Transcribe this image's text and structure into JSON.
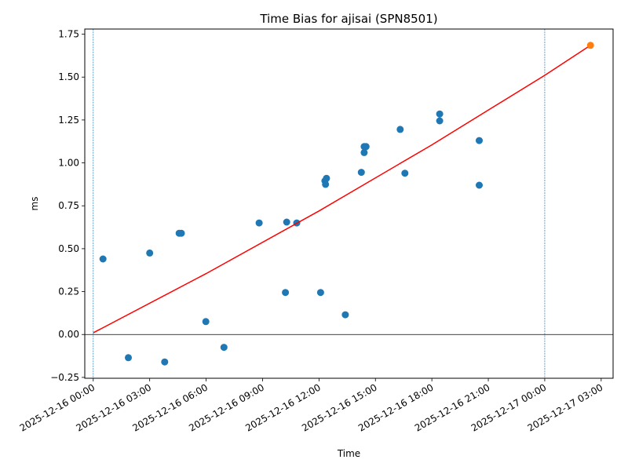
{
  "chart_data": {
    "type": "scatter",
    "title": "Time Bias for ajisai (SPN8501)",
    "xlabel": "Time",
    "ylabel": "ms",
    "xlim": [
      "2025-12-15 23:33",
      "2025-12-17 03:38"
    ],
    "ylim": [
      -0.255,
      1.78
    ],
    "x_ticks": [
      "2025-12-16 00:00",
      "2025-12-16 03:00",
      "2025-12-16 06:00",
      "2025-12-16 09:00",
      "2025-12-16 12:00",
      "2025-12-16 15:00",
      "2025-12-16 18:00",
      "2025-12-16 21:00",
      "2025-12-17 00:00",
      "2025-12-17 03:00"
    ],
    "y_ticks": [
      "−0.25",
      "0.00",
      "0.25",
      "0.50",
      "0.75",
      "1.00",
      "1.25",
      "1.50",
      "1.75"
    ],
    "y_tick_values": [
      -0.25,
      0,
      0.25,
      0.5,
      0.75,
      1.0,
      1.25,
      1.5,
      1.75
    ],
    "vertical_lines": [
      "2025-12-16 00:00",
      "2025-12-17 00:00"
    ],
    "horizontal_lines": [
      0
    ],
    "grid": false,
    "series": [
      {
        "type": "scatter",
        "color": "#1f77b4",
        "points": [
          {
            "x": "2025-12-16 00:31",
            "y": 0.44
          },
          {
            "x": "2025-12-16 01:52",
            "y": -0.135
          },
          {
            "x": "2025-12-16 03:00",
            "y": 0.475
          },
          {
            "x": "2025-12-16 03:48",
            "y": -0.16
          },
          {
            "x": "2025-12-16 04:34",
            "y": 0.59
          },
          {
            "x": "2025-12-16 04:41",
            "y": 0.59
          },
          {
            "x": "2025-12-16 05:59",
            "y": 0.075
          },
          {
            "x": "2025-12-16 06:57",
            "y": -0.075
          },
          {
            "x": "2025-12-16 08:49",
            "y": 0.65
          },
          {
            "x": "2025-12-16 10:13",
            "y": 0.245
          },
          {
            "x": "2025-12-16 10:17",
            "y": 0.655
          },
          {
            "x": "2025-12-16 10:49",
            "y": 0.65
          },
          {
            "x": "2025-12-16 12:05",
            "y": 0.245
          },
          {
            "x": "2025-12-16 12:19",
            "y": 0.895
          },
          {
            "x": "2025-12-16 12:21",
            "y": 0.875
          },
          {
            "x": "2025-12-16 12:24",
            "y": 0.91
          },
          {
            "x": "2025-12-16 13:24",
            "y": 0.115
          },
          {
            "x": "2025-12-16 14:15",
            "y": 0.945
          },
          {
            "x": "2025-12-16 14:24",
            "y": 1.06
          },
          {
            "x": "2025-12-16 14:24",
            "y": 1.095
          },
          {
            "x": "2025-12-16 14:30",
            "y": 1.095
          },
          {
            "x": "2025-12-16 16:19",
            "y": 1.195
          },
          {
            "x": "2025-12-16 16:34",
            "y": 0.94
          },
          {
            "x": "2025-12-16 18:25",
            "y": 1.285
          },
          {
            "x": "2025-12-16 18:25",
            "y": 1.245
          },
          {
            "x": "2025-12-16 20:31",
            "y": 1.13
          },
          {
            "x": "2025-12-16 20:31",
            "y": 0.87
          }
        ]
      },
      {
        "type": "line",
        "color": "#ff0000",
        "points": [
          {
            "x": "2025-12-16 00:00",
            "y": 0.01
          },
          {
            "x": "2025-12-16 06:00",
            "y": 0.355
          },
          {
            "x": "2025-12-16 12:00",
            "y": 0.72
          },
          {
            "x": "2025-12-16 18:00",
            "y": 1.105
          },
          {
            "x": "2025-12-17 00:00",
            "y": 1.51
          },
          {
            "x": "2025-12-17 02:26",
            "y": 1.685
          }
        ]
      },
      {
        "type": "scatter",
        "color": "#ff7f0e",
        "points": [
          {
            "x": "2025-12-17 02:26",
            "y": 1.685
          }
        ]
      }
    ]
  }
}
